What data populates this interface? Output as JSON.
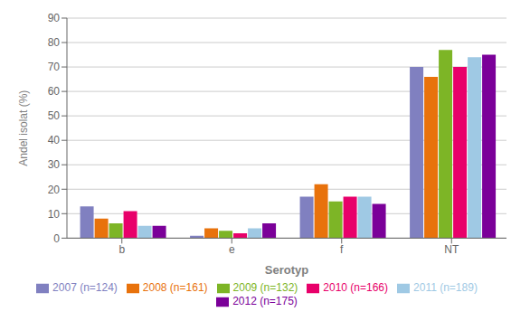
{
  "chart_data": {
    "type": "bar",
    "categories": [
      "b",
      "e",
      "f",
      "NT"
    ],
    "series": [
      {
        "name": "2007 (n=124)",
        "color": "#8080C0",
        "values": [
          13,
          1,
          17,
          70
        ]
      },
      {
        "name": "2008 (n=161)",
        "color": "#E8720C",
        "values": [
          8,
          4,
          22,
          66
        ]
      },
      {
        "name": "2009 (n=132)",
        "color": "#7DB526",
        "values": [
          6,
          3,
          15,
          77
        ]
      },
      {
        "name": "2010 (n=166)",
        "color": "#E8006A",
        "values": [
          11,
          2,
          17,
          70
        ]
      },
      {
        "name": "2011 (n=189)",
        "color": "#9FC9E4",
        "values": [
          5,
          4,
          17,
          74
        ]
      },
      {
        "name": "2012 (n=175)",
        "color": "#7B0099",
        "values": [
          5,
          6,
          14,
          75
        ]
      }
    ],
    "xlabel": "Serotyp",
    "ylabel": "Andel isolat (%)",
    "ylim": [
      0,
      90
    ],
    "yticks": [
      0,
      10,
      20,
      30,
      40,
      50,
      60,
      70,
      80,
      90
    ],
    "grid": true,
    "legend": "bottom"
  }
}
